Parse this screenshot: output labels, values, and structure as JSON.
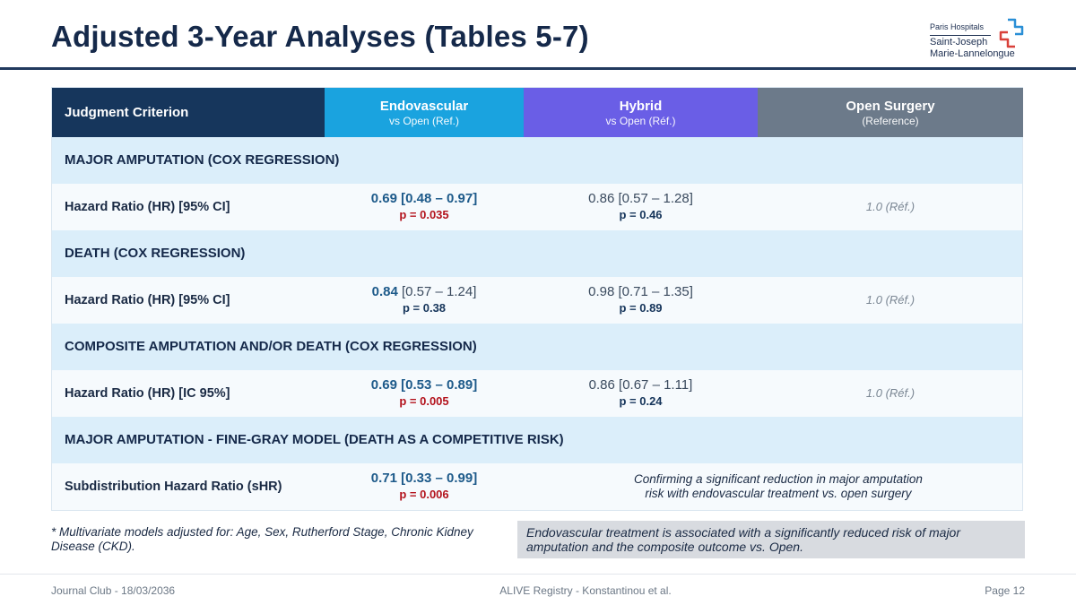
{
  "title": "Adjusted 3-Year Analyses (Tables 5-7)",
  "logo": {
    "line1": "Paris Hospitals",
    "line2": "Saint-Joseph",
    "line3": "Marie-Lannelongue",
    "icon": "cross-logo-icon",
    "colors": {
      "blue": "#2a8fd6",
      "red": "#d9413a"
    }
  },
  "table": {
    "headers": [
      {
        "main": "Judgment Criterion",
        "sub": ""
      },
      {
        "main": "Endovascular",
        "sub": "vs Open (Ref.)"
      },
      {
        "main": "Hybrid",
        "sub": "vs Open (Réf.)"
      },
      {
        "main": "Open Surgery",
        "sub": "(Reference)"
      }
    ],
    "header_colors": [
      "#16365c",
      "#1aa3df",
      "#6a5ee6",
      "#6c7a8a"
    ],
    "sections": [
      {
        "title": "MAJOR AMPUTATION (COX REGRESSION)",
        "criterion": "Hazard Ratio (HR) [95% CI]",
        "endo_value": "0.69 [0.48 – 0.97]",
        "endo_p": "p = 0.035",
        "hybrid_value": "0.86 [0.57 – 1.28]",
        "hybrid_p": "p = 0.46",
        "open": "1.0 (Réf.)"
      },
      {
        "title": "DEATH (COX REGRESSION)",
        "criterion": "Hazard Ratio (HR) [95% CI]",
        "endo_hr": "0.84",
        "endo_ci": "[0.57 – 1.24]",
        "endo_p": "p = 0.38",
        "hybrid_value": "0.98 [0.71 – 1.35]",
        "hybrid_p": "p = 0.89",
        "open": "1.0 (Réf.)"
      },
      {
        "title": "COMPOSITE AMPUTATION AND/OR DEATH (COX REGRESSION)",
        "criterion": "Hazard Ratio (HR) [IC 95%]",
        "endo_value": "0.69 [0.53 – 0.89]",
        "endo_p": "p = 0.005",
        "hybrid_value": "0.86 [0.67 – 1.11]",
        "hybrid_p": "p = 0.24",
        "open": "1.0 (Réf.)"
      },
      {
        "title": "MAJOR AMPUTATION - FINE-GRAY MODEL (DEATH AS A COMPETITIVE RISK)",
        "criterion": "Subdistribution Hazard Ratio (sHR)",
        "endo_value": "0.71 [0.33 – 0.99]",
        "endo_p": "p = 0.006",
        "note_line1": "Confirming a significant reduction in major amputation",
        "note_line2": "risk with endovascular treatment vs. open surgery"
      }
    ]
  },
  "footnote": "* Multivariate models adjusted for: Age, Sex, Rutherford Stage, Chronic Kidney Disease (CKD).",
  "conclusion": "Endovascular treatment is associated with a significantly reduced risk of major amputation and the composite outcome vs. Open.",
  "footer": {
    "left": "Journal Club - 18/03/2036",
    "center": "ALIVE Registry - Konstantinou et al.",
    "right": "Page 12"
  }
}
